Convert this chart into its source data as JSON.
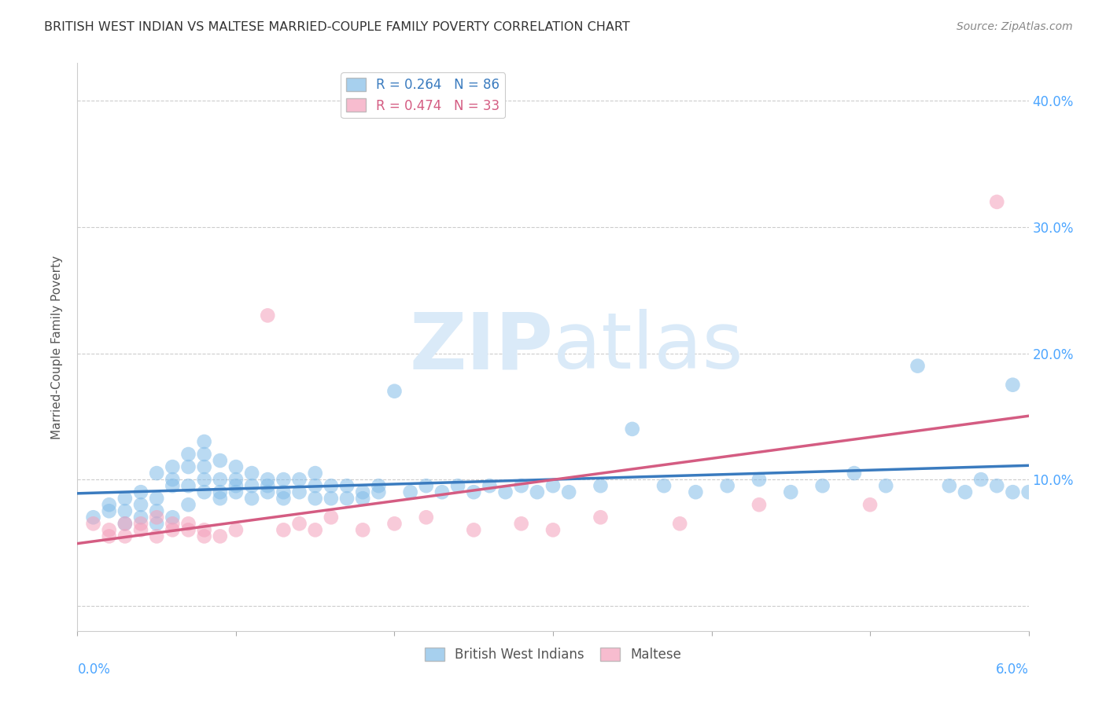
{
  "title": "BRITISH WEST INDIAN VS MALTESE MARRIED-COUPLE FAMILY POVERTY CORRELATION CHART",
  "source": "Source: ZipAtlas.com",
  "ylabel": "Married-Couple Family Poverty",
  "xlim": [
    0.0,
    0.06
  ],
  "ylim": [
    -2.0,
    43.0
  ],
  "blue_color": "#82bce8",
  "blue_line_color": "#3a7bbf",
  "pink_color": "#f4a0bb",
  "pink_line_color": "#d45c82",
  "watermark_zip": "ZIP",
  "watermark_atlas": "atlas",
  "watermark_color": "#daeaf8",
  "title_color": "#333333",
  "grid_color": "#cccccc",
  "tick_color": "#4da6ff",
  "blue_scatter_x": [
    0.001,
    0.002,
    0.002,
    0.003,
    0.003,
    0.003,
    0.004,
    0.004,
    0.004,
    0.005,
    0.005,
    0.005,
    0.005,
    0.006,
    0.006,
    0.006,
    0.006,
    0.007,
    0.007,
    0.007,
    0.007,
    0.008,
    0.008,
    0.008,
    0.008,
    0.008,
    0.009,
    0.009,
    0.009,
    0.009,
    0.01,
    0.01,
    0.01,
    0.01,
    0.011,
    0.011,
    0.011,
    0.012,
    0.012,
    0.012,
    0.013,
    0.013,
    0.013,
    0.014,
    0.014,
    0.015,
    0.015,
    0.015,
    0.016,
    0.016,
    0.017,
    0.017,
    0.018,
    0.018,
    0.019,
    0.019,
    0.02,
    0.021,
    0.022,
    0.023,
    0.024,
    0.025,
    0.026,
    0.027,
    0.028,
    0.029,
    0.03,
    0.031,
    0.033,
    0.035,
    0.037,
    0.039,
    0.041,
    0.043,
    0.045,
    0.047,
    0.049,
    0.051,
    0.053,
    0.055,
    0.056,
    0.057,
    0.058,
    0.059,
    0.059,
    0.06
  ],
  "blue_scatter_y": [
    7.0,
    8.0,
    7.5,
    6.5,
    7.5,
    8.5,
    7.0,
    8.0,
    9.0,
    6.5,
    7.5,
    8.5,
    10.5,
    9.5,
    10.0,
    11.0,
    7.0,
    8.0,
    9.5,
    11.0,
    12.0,
    9.0,
    10.0,
    11.0,
    12.0,
    13.0,
    9.0,
    10.0,
    11.5,
    8.5,
    9.0,
    10.0,
    11.0,
    9.5,
    8.5,
    9.5,
    10.5,
    9.0,
    10.0,
    9.5,
    9.0,
    10.0,
    8.5,
    9.0,
    10.0,
    8.5,
    9.5,
    10.5,
    8.5,
    9.5,
    8.5,
    9.5,
    9.0,
    8.5,
    9.0,
    9.5,
    17.0,
    9.0,
    9.5,
    9.0,
    9.5,
    9.0,
    9.5,
    9.0,
    9.5,
    9.0,
    9.5,
    9.0,
    9.5,
    14.0,
    9.5,
    9.0,
    9.5,
    10.0,
    9.0,
    9.5,
    10.5,
    9.5,
    19.0,
    9.5,
    9.0,
    10.0,
    9.5,
    9.0,
    17.5,
    9.0
  ],
  "pink_scatter_x": [
    0.001,
    0.002,
    0.002,
    0.003,
    0.003,
    0.004,
    0.004,
    0.005,
    0.005,
    0.006,
    0.006,
    0.007,
    0.007,
    0.008,
    0.008,
    0.009,
    0.01,
    0.012,
    0.013,
    0.014,
    0.015,
    0.016,
    0.018,
    0.02,
    0.022,
    0.025,
    0.028,
    0.03,
    0.033,
    0.038,
    0.043,
    0.05,
    0.058
  ],
  "pink_scatter_y": [
    6.5,
    5.5,
    6.0,
    5.5,
    6.5,
    6.0,
    6.5,
    5.5,
    7.0,
    6.0,
    6.5,
    6.0,
    6.5,
    5.5,
    6.0,
    5.5,
    6.0,
    23.0,
    6.0,
    6.5,
    6.0,
    7.0,
    6.0,
    6.5,
    7.0,
    6.0,
    6.5,
    6.0,
    7.0,
    6.5,
    8.0,
    8.0,
    32.0
  ]
}
